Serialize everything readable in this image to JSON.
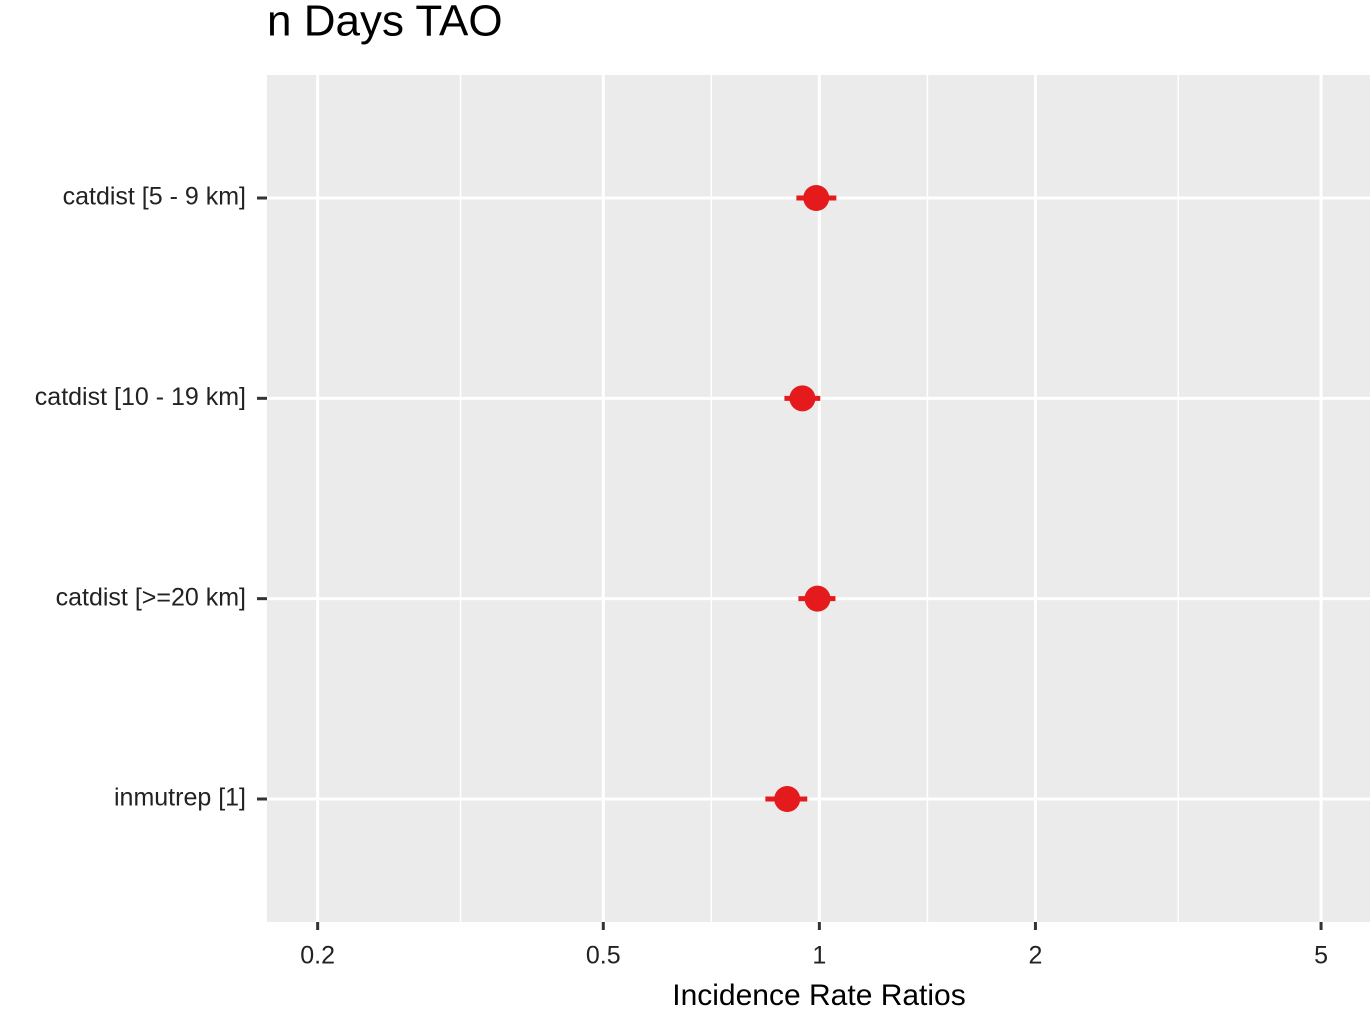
{
  "chart_data": {
    "type": "forest",
    "title": "n Days TAO",
    "x_label": "Incidence Rate Ratios",
    "categories": [
      "catdist [5 - 9 km]",
      "catdist [10 - 19 km]",
      "catdist [>=20 km]",
      "inmutrep [1]"
    ],
    "values": [
      0.99,
      0.947,
      0.994,
      0.902
    ],
    "lower": [
      0.929,
      0.894,
      0.935,
      0.841
    ],
    "upper": [
      1.056,
      1.003,
      1.053,
      0.962
    ],
    "color": "#e41a1c",
    "log_x": true,
    "xlim": [
      0.17,
      5.85
    ],
    "xticks": [
      0.2,
      0.5,
      1,
      2,
      5
    ],
    "grid": true
  }
}
